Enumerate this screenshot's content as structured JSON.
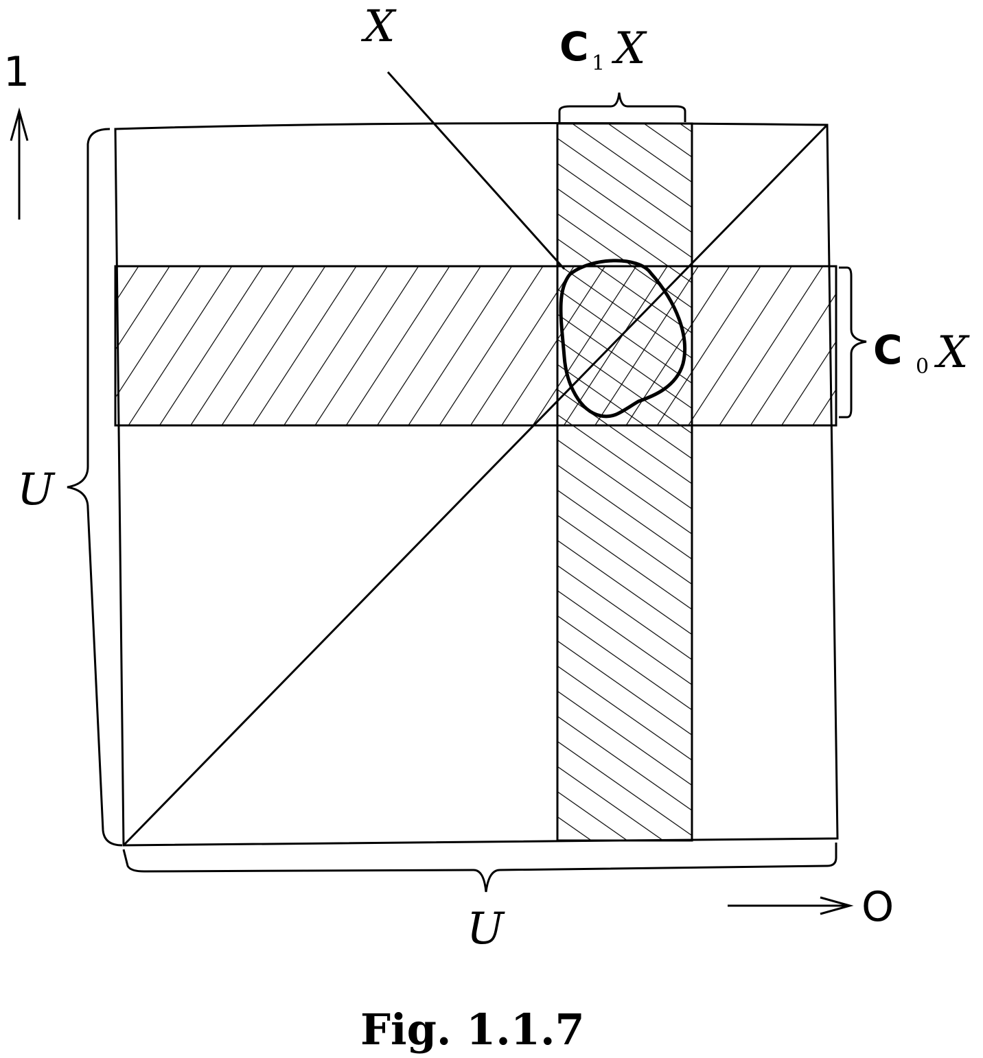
{
  "labels": {
    "set_x": "X",
    "c1_bold": "C",
    "c1_sub": "1",
    "c1_x": "X",
    "c0_bold": "C",
    "c0_sub": "0",
    "c0_x": "X",
    "u_left": "U",
    "u_bottom": "U",
    "axis_up": "1",
    "axis_right": "O"
  },
  "caption": "Fig. 1.1.7"
}
